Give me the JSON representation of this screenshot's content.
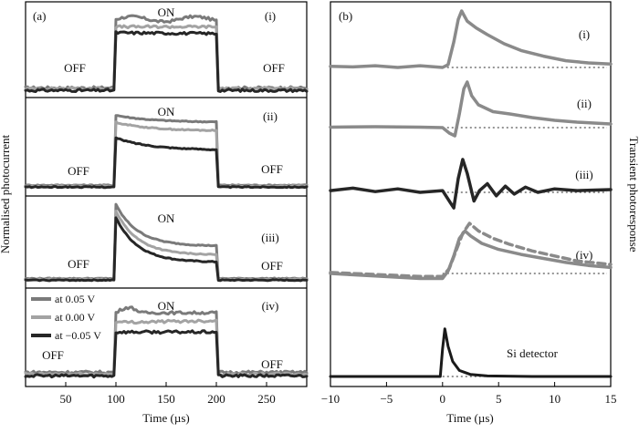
{
  "chart_data": [
    {
      "type": "line",
      "panel_label": "(a)",
      "ylabel": "Normalised photocurrent",
      "xlabel": "Time (µs)",
      "xlim": [
        10,
        290
      ],
      "x_ticks": [
        50,
        100,
        150,
        200,
        250
      ],
      "x_tick_labels": [
        "50",
        "100",
        "150",
        "200",
        "250"
      ],
      "light_on_window": [
        100,
        200
      ],
      "colors": {
        "at 0.05 V": "#7a7a7a",
        "at 0.00 V": "#a3a3a3",
        "at −0.05 V": "#262626"
      },
      "legend": {
        "placement": "left of subplot (iv)",
        "entries": [
          "at 0.05 V",
          "at 0.00 V",
          "at −0.05 V"
        ]
      },
      "subplots": [
        {
          "label": "(i)",
          "on_label": "ON",
          "off_left_label": "OFF",
          "off_right_label": "OFF",
          "series": [
            {
              "name": "at 0.05 V",
              "values_off": 0.05,
              "values_on_start": 0.86,
              "values_on_end": 0.86,
              "shape": "rectangular with ripple"
            },
            {
              "name": "at 0.00 V",
              "values_off": 0.04,
              "values_on_start": 0.77,
              "values_on_end": 0.77,
              "shape": "rectangular"
            },
            {
              "name": "at −0.05 V",
              "values_off": 0.02,
              "values_on_start": 0.7,
              "values_on_end": 0.69,
              "shape": "rectangular"
            }
          ]
        },
        {
          "label": "(ii)",
          "on_label": "ON",
          "off_left_label": "OFF",
          "off_right_label": "OFF",
          "series": [
            {
              "name": "at 0.05 V",
              "values_off": 0.06,
              "values_on_start": 0.86,
              "values_on_end": 0.78,
              "shape": "decaying"
            },
            {
              "name": "at 0.00 V",
              "values_off": 0.05,
              "values_on_start": 0.78,
              "values_on_end": 0.68,
              "shape": "decaying"
            },
            {
              "name": "at −0.05 V",
              "values_off": 0.04,
              "values_on_start": 0.6,
              "values_on_end": 0.46,
              "shape": "decaying"
            }
          ]
        },
        {
          "label": "(iii)",
          "on_label": "ON",
          "off_left_label": "OFF",
          "off_right_label": "OFF",
          "series": [
            {
              "name": "at 0.05 V",
              "values_off": 0.05,
              "values_on_start": 0.96,
              "values_on_end": 0.45,
              "shape": "strongly decaying"
            },
            {
              "name": "at 0.00 V",
              "values_off": 0.04,
              "values_on_start": 0.88,
              "values_on_end": 0.34,
              "shape": "strongly decaying"
            },
            {
              "name": "at −0.05 V",
              "values_off": 0.03,
              "values_on_start": 0.8,
              "values_on_end": 0.25,
              "shape": "strongly decaying"
            }
          ]
        },
        {
          "label": "(iv)",
          "on_label": "ON",
          "off_left_label": "OFF",
          "off_right_label": "OFF",
          "series": [
            {
              "name": "at 0.05 V",
              "values_off": 0.1,
              "values_on_start": 0.78,
              "values_on_end": 0.78,
              "shape": "rectangular with bump"
            },
            {
              "name": "at 0.00 V",
              "values_off": 0.08,
              "values_on_start": 0.67,
              "values_on_end": 0.69,
              "shape": "rectangular"
            },
            {
              "name": "at −0.05 V",
              "values_off": 0.06,
              "values_on_start": 0.56,
              "values_on_end": 0.56,
              "shape": "rectangular"
            }
          ]
        }
      ]
    },
    {
      "type": "line",
      "panel_label": "(b)",
      "ylabel": "Transient photoresponse",
      "xlabel": "Time (µs)",
      "xlim": [
        -10,
        15
      ],
      "x_ticks": [
        -10,
        -5,
        0,
        5,
        10,
        15
      ],
      "x_tick_labels": [
        "−10",
        "−5",
        "0",
        "5",
        "10",
        "15"
      ],
      "baseline_style": "dotted",
      "colors": {
        "(i)": "#8a8a8a",
        "(ii)": "#8a8a8a",
        "(iii)": "#262626",
        "(iv)": "#8a8a8a",
        "Si detector": "#1a1a1a"
      },
      "traces": [
        {
          "label": "(i)",
          "style": "solid",
          "points": [
            [
              -10,
              0.02
            ],
            [
              -8,
              0.01
            ],
            [
              -6,
              0.03
            ],
            [
              -4,
              0.0
            ],
            [
              -2,
              0.03
            ],
            [
              0,
              0.0
            ],
            [
              0.5,
              0.05
            ],
            [
              1.0,
              0.45
            ],
            [
              1.4,
              0.85
            ],
            [
              1.7,
              1.0
            ],
            [
              2.2,
              0.82
            ],
            [
              3.0,
              0.7
            ],
            [
              4.0,
              0.58
            ],
            [
              5.5,
              0.42
            ],
            [
              7,
              0.3
            ],
            [
              9,
              0.2
            ],
            [
              11,
              0.12
            ],
            [
              13,
              0.08
            ],
            [
              15,
              0.06
            ]
          ]
        },
        {
          "label": "(ii)",
          "style": "solid",
          "points": [
            [
              -10,
              0.01
            ],
            [
              -6,
              0.02
            ],
            [
              -2,
              0.01
            ],
            [
              0,
              0.0
            ],
            [
              0.6,
              -0.12
            ],
            [
              1.1,
              -0.18
            ],
            [
              1.5,
              0.3
            ],
            [
              1.9,
              0.85
            ],
            [
              2.2,
              1.0
            ],
            [
              2.6,
              0.7
            ],
            [
              3.2,
              0.5
            ],
            [
              4.5,
              0.35
            ],
            [
              6,
              0.3
            ],
            [
              8,
              0.22
            ],
            [
              10,
              0.16
            ],
            [
              12,
              0.12
            ],
            [
              15,
              0.08
            ]
          ]
        },
        {
          "label": "(iii)",
          "style": "solid",
          "points": [
            [
              -10,
              0.05
            ],
            [
              -8,
              0.12
            ],
            [
              -6,
              0.02
            ],
            [
              -4,
              0.1
            ],
            [
              -2,
              0.0
            ],
            [
              0,
              0.05
            ],
            [
              0.7,
              -0.3
            ],
            [
              1.0,
              -0.45
            ],
            [
              1.4,
              0.4
            ],
            [
              1.8,
              0.95
            ],
            [
              2.2,
              0.55
            ],
            [
              2.8,
              -0.25
            ],
            [
              3.3,
              0.05
            ],
            [
              4.0,
              0.25
            ],
            [
              4.8,
              -0.1
            ],
            [
              5.6,
              0.18
            ],
            [
              6.4,
              -0.05
            ],
            [
              7.4,
              0.15
            ],
            [
              8.5,
              0.0
            ],
            [
              10,
              0.1
            ],
            [
              12,
              0.05
            ],
            [
              15,
              0.08
            ]
          ]
        },
        {
          "label": "(iv)",
          "style": "solid",
          "points": [
            [
              -10,
              0.0
            ],
            [
              -6,
              -0.05
            ],
            [
              -2,
              -0.1
            ],
            [
              0,
              -0.1
            ],
            [
              0.5,
              0.05
            ],
            [
              1.0,
              0.35
            ],
            [
              1.5,
              0.7
            ],
            [
              2.0,
              0.85
            ],
            [
              2.5,
              0.75
            ],
            [
              3.5,
              0.6
            ],
            [
              5,
              0.48
            ],
            [
              7,
              0.38
            ],
            [
              9,
              0.3
            ],
            [
              11,
              0.22
            ],
            [
              13,
              0.16
            ],
            [
              15,
              0.12
            ]
          ]
        },
        {
          "label": "(iv)",
          "style": "dashed",
          "points": [
            [
              -10,
              0.02
            ],
            [
              -6,
              -0.02
            ],
            [
              -2,
              -0.06
            ],
            [
              0,
              -0.06
            ],
            [
              0.6,
              0.1
            ],
            [
              1.2,
              0.45
            ],
            [
              1.8,
              0.8
            ],
            [
              2.4,
              1.0
            ],
            [
              3.2,
              0.85
            ],
            [
              4.5,
              0.7
            ],
            [
              6,
              0.58
            ],
            [
              8,
              0.45
            ],
            [
              10,
              0.35
            ],
            [
              12,
              0.25
            ],
            [
              15,
              0.18
            ]
          ]
        },
        {
          "label": "Si detector",
          "style": "solid",
          "points": [
            [
              -10,
              0.0
            ],
            [
              -5,
              0.0
            ],
            [
              -0.2,
              0.0
            ],
            [
              0,
              0.55
            ],
            [
              0.2,
              0.95
            ],
            [
              0.5,
              0.6
            ],
            [
              0.9,
              0.3
            ],
            [
              1.5,
              0.12
            ],
            [
              2.5,
              0.04
            ],
            [
              4,
              0.01
            ],
            [
              8,
              0.0
            ],
            [
              15,
              0.0
            ]
          ]
        }
      ]
    }
  ]
}
